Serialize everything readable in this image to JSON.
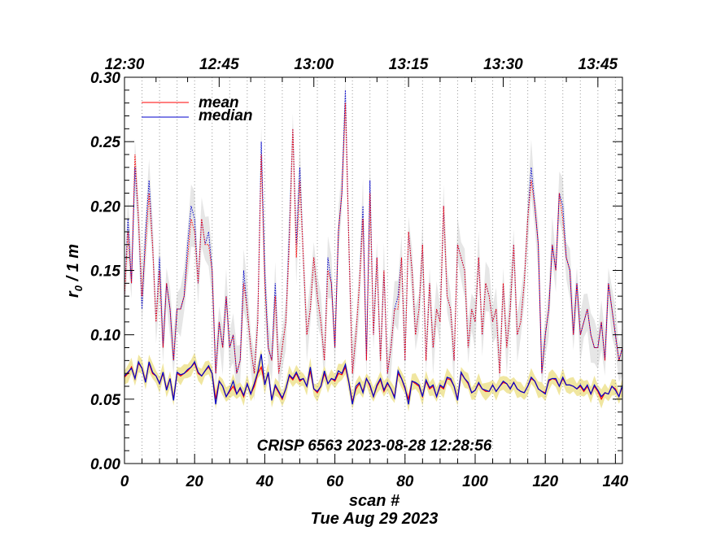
{
  "chart_data": {
    "type": "line",
    "annotation": "CRISP 6563 2023-08-28 12:28:56",
    "xlabel": "scan #",
    "date_label": "Tue Aug 29 2023",
    "ylabel_main": "r",
    "ylabel_sub": "0",
    "ylabel_rest": " / 1 m",
    "xlim": [
      0,
      142
    ],
    "ylim": [
      0,
      0.3
    ],
    "x_ticks": [
      0,
      20,
      40,
      60,
      80,
      100,
      120,
      140
    ],
    "x_tick_labels": [
      "0",
      "20",
      "40",
      "60",
      "80",
      "100",
      "120",
      "140"
    ],
    "y_ticks": [
      0,
      0.05,
      0.1,
      0.15,
      0.2,
      0.25,
      0.3
    ],
    "y_tick_labels": [
      "0.00",
      "0.05",
      "0.10",
      "0.15",
      "0.20",
      "0.25",
      "0.30"
    ],
    "top_axis_labels": [
      "12:30",
      "12:45",
      "13:00",
      "13:15",
      "13:30",
      "13:45"
    ],
    "top_axis_positions": [
      0,
      27,
      54,
      81,
      108,
      135
    ],
    "vertical_gridlines_at": [
      5,
      10,
      15,
      20,
      25,
      30,
      35,
      40,
      45,
      50,
      55,
      60,
      65,
      70,
      75,
      80,
      85,
      90,
      95,
      100,
      105,
      110,
      115,
      120,
      125,
      130,
      135,
      140
    ],
    "legend": [
      {
        "label": "mean",
        "color": "#ff0000"
      },
      {
        "label": "median",
        "color": "#0000cc"
      }
    ],
    "colors": {
      "mean": "#ff0000",
      "median": "#0000cc",
      "upper_band": "#e6e6e6",
      "lower_band": "#f0e6a0",
      "grid": "#9a9a9a"
    },
    "series": [
      {
        "name": "upper-median",
        "style": "dotted",
        "values": [
          0.13,
          0.19,
          0.14,
          0.23,
          0.19,
          0.12,
          0.18,
          0.22,
          0.17,
          0.11,
          0.16,
          0.09,
          0.14,
          0.12,
          0.08,
          0.12,
          0.12,
          0.13,
          0.17,
          0.2,
          0.19,
          0.14,
          0.19,
          0.17,
          0.18,
          0.15,
          0.07,
          0.11,
          0.09,
          0.13,
          0.09,
          0.1,
          0.07,
          0.08,
          0.15,
          0.12,
          0.09,
          0.07,
          0.11,
          0.25,
          0.15,
          0.09,
          0.08,
          0.14,
          0.07,
          0.09,
          0.11,
          0.18,
          0.26,
          0.17,
          0.23,
          0.16,
          0.1,
          0.12,
          0.16,
          0.13,
          0.11,
          0.08,
          0.16,
          0.14,
          0.09,
          0.18,
          0.21,
          0.29,
          0.17,
          0.07,
          0.1,
          0.14,
          0.2,
          0.08,
          0.22,
          0.1,
          0.16,
          0.08,
          0.15,
          0.07,
          0.09,
          0.12,
          0.13,
          0.16,
          0.08,
          0.18,
          0.15,
          0.1,
          0.12,
          0.17,
          0.08,
          0.14,
          0.09,
          0.12,
          0.11,
          0.2,
          0.13,
          0.12,
          0.08,
          0.17,
          0.16,
          0.15,
          0.09,
          0.12,
          0.11,
          0.16,
          0.1,
          0.14,
          0.13,
          0.11,
          0.12,
          0.07,
          0.14,
          0.09,
          0.12,
          0.17,
          0.1,
          0.11,
          0.14,
          0.19,
          0.23,
          0.2,
          0.17,
          0.07,
          0.1,
          0.12,
          0.17,
          0.15,
          0.21,
          0.2,
          0.16,
          0.15,
          0.1,
          0.14,
          0.1,
          0.11,
          0.12,
          0.1,
          0.09,
          0.09,
          0.11,
          0.08,
          0.14,
          0.12,
          0.1,
          0.08,
          0.09
        ]
      },
      {
        "name": "upper-mean",
        "style": "dotted",
        "values": [
          0.13,
          0.18,
          0.14,
          0.24,
          0.19,
          0.13,
          0.17,
          0.21,
          0.17,
          0.11,
          0.15,
          0.09,
          0.14,
          0.12,
          0.08,
          0.12,
          0.12,
          0.13,
          0.16,
          0.19,
          0.18,
          0.14,
          0.19,
          0.17,
          0.17,
          0.15,
          0.07,
          0.11,
          0.09,
          0.13,
          0.09,
          0.1,
          0.07,
          0.08,
          0.14,
          0.12,
          0.09,
          0.07,
          0.11,
          0.24,
          0.14,
          0.09,
          0.08,
          0.13,
          0.07,
          0.09,
          0.11,
          0.17,
          0.26,
          0.16,
          0.22,
          0.16,
          0.1,
          0.12,
          0.16,
          0.13,
          0.11,
          0.08,
          0.15,
          0.14,
          0.09,
          0.18,
          0.21,
          0.28,
          0.17,
          0.07,
          0.1,
          0.14,
          0.19,
          0.08,
          0.21,
          0.1,
          0.16,
          0.08,
          0.15,
          0.07,
          0.09,
          0.12,
          0.12,
          0.16,
          0.08,
          0.18,
          0.15,
          0.1,
          0.12,
          0.17,
          0.08,
          0.14,
          0.09,
          0.12,
          0.11,
          0.2,
          0.13,
          0.12,
          0.08,
          0.17,
          0.16,
          0.15,
          0.09,
          0.12,
          0.11,
          0.16,
          0.1,
          0.14,
          0.13,
          0.11,
          0.12,
          0.07,
          0.14,
          0.09,
          0.12,
          0.17,
          0.1,
          0.11,
          0.14,
          0.19,
          0.22,
          0.2,
          0.17,
          0.07,
          0.1,
          0.12,
          0.17,
          0.15,
          0.21,
          0.19,
          0.16,
          0.15,
          0.1,
          0.14,
          0.1,
          0.11,
          0.12,
          0.1,
          0.09,
          0.09,
          0.11,
          0.08,
          0.14,
          0.12,
          0.1,
          0.08,
          0.09
        ]
      },
      {
        "name": "lower-mean",
        "style": "solid",
        "values": [
          0.067,
          0.07,
          0.075,
          0.066,
          0.078,
          0.074,
          0.064,
          0.078,
          0.07,
          0.068,
          0.062,
          0.07,
          0.058,
          0.066,
          0.05,
          0.07,
          0.068,
          0.07,
          0.072,
          0.075,
          0.078,
          0.07,
          0.068,
          0.072,
          0.075,
          0.07,
          0.05,
          0.064,
          0.06,
          0.052,
          0.056,
          0.06,
          0.054,
          0.058,
          0.052,
          0.062,
          0.054,
          0.06,
          0.07,
          0.075,
          0.062,
          0.07,
          0.05,
          0.06,
          0.055,
          0.05,
          0.058,
          0.068,
          0.065,
          0.07,
          0.064,
          0.066,
          0.06,
          0.072,
          0.058,
          0.055,
          0.06,
          0.07,
          0.062,
          0.066,
          0.064,
          0.07,
          0.069,
          0.075,
          0.063,
          0.048,
          0.058,
          0.062,
          0.056,
          0.066,
          0.06,
          0.052,
          0.06,
          0.065,
          0.056,
          0.062,
          0.058,
          0.052,
          0.07,
          0.066,
          0.058,
          0.05,
          0.064,
          0.062,
          0.06,
          0.052,
          0.064,
          0.058,
          0.06,
          0.052,
          0.06,
          0.058,
          0.066,
          0.065,
          0.06,
          0.05,
          0.07,
          0.066,
          0.062,
          0.055,
          0.057,
          0.062,
          0.058,
          0.056,
          0.056,
          0.061,
          0.056,
          0.06,
          0.063,
          0.062,
          0.058,
          0.063,
          0.058,
          0.056,
          0.055,
          0.06,
          0.066,
          0.064,
          0.058,
          0.056,
          0.055,
          0.064,
          0.066,
          0.065,
          0.06,
          0.066,
          0.061,
          0.061,
          0.06,
          0.058,
          0.06,
          0.056,
          0.06,
          0.054,
          0.06,
          0.056,
          0.05,
          0.055,
          0.054,
          0.06,
          0.058,
          0.052,
          0.06
        ]
      },
      {
        "name": "lower-median",
        "style": "solid",
        "values": [
          0.068,
          0.071,
          0.074,
          0.066,
          0.079,
          0.074,
          0.063,
          0.079,
          0.071,
          0.068,
          0.062,
          0.071,
          0.057,
          0.066,
          0.049,
          0.071,
          0.069,
          0.07,
          0.073,
          0.075,
          0.079,
          0.071,
          0.068,
          0.072,
          0.076,
          0.07,
          0.046,
          0.064,
          0.06,
          0.052,
          0.057,
          0.064,
          0.054,
          0.059,
          0.053,
          0.062,
          0.054,
          0.062,
          0.071,
          0.085,
          0.061,
          0.071,
          0.049,
          0.061,
          0.056,
          0.051,
          0.058,
          0.069,
          0.066,
          0.071,
          0.065,
          0.066,
          0.06,
          0.075,
          0.058,
          0.056,
          0.06,
          0.072,
          0.062,
          0.066,
          0.065,
          0.072,
          0.07,
          0.077,
          0.063,
          0.046,
          0.06,
          0.063,
          0.055,
          0.066,
          0.061,
          0.052,
          0.061,
          0.066,
          0.057,
          0.063,
          0.058,
          0.051,
          0.072,
          0.066,
          0.059,
          0.046,
          0.064,
          0.063,
          0.061,
          0.052,
          0.065,
          0.059,
          0.061,
          0.052,
          0.061,
          0.059,
          0.067,
          0.066,
          0.06,
          0.049,
          0.071,
          0.066,
          0.063,
          0.055,
          0.057,
          0.063,
          0.058,
          0.057,
          0.056,
          0.061,
          0.056,
          0.06,
          0.064,
          0.062,
          0.058,
          0.063,
          0.058,
          0.056,
          0.055,
          0.06,
          0.067,
          0.064,
          0.058,
          0.056,
          0.054,
          0.065,
          0.066,
          0.066,
          0.06,
          0.067,
          0.061,
          0.061,
          0.06,
          0.058,
          0.061,
          0.057,
          0.061,
          0.054,
          0.061,
          0.057,
          0.052,
          0.055,
          0.054,
          0.06,
          0.057,
          0.052,
          0.061
        ]
      }
    ]
  }
}
